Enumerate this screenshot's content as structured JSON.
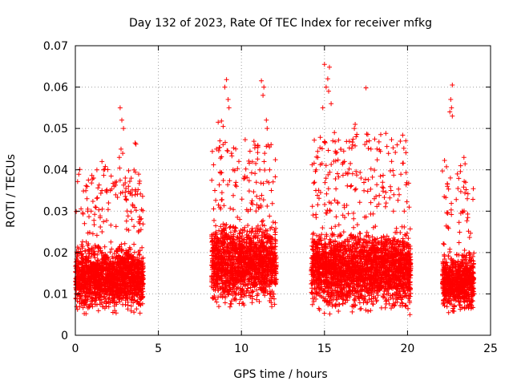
{
  "chart_data": {
    "type": "scatter",
    "title": "Day 132 of 2023, Rate Of TEC Index for receiver mfkg",
    "xlabel": "GPS time / hours",
    "ylabel": "ROTI / TECUs",
    "xlim": [
      0,
      25
    ],
    "ylim": [
      0,
      0.07
    ],
    "xticks": [
      0,
      5,
      10,
      15,
      20,
      25
    ],
    "yticks": [
      0,
      0.01,
      0.02,
      0.03,
      0.04,
      0.05,
      0.06,
      0.07
    ],
    "xtick_labels": [
      "0",
      "5",
      "10",
      "15",
      "20",
      "25"
    ],
    "ytick_labels": [
      "0",
      "0.01",
      "0.02",
      "0.03",
      "0.04",
      "0.05",
      "0.06",
      "0.07"
    ],
    "grid": true,
    "marker": "+",
    "color": "#ff0000",
    "series": [
      {
        "name": "ROTI",
        "clusters": [
          {
            "x_range": [
              0.0,
              4.1
            ],
            "typical_range": [
              0.004,
              0.024
            ],
            "max": 0.055
          },
          {
            "x_range": [
              8.2,
              12.1
            ],
            "typical_range": [
              0.005,
              0.03
            ],
            "max": 0.062
          },
          {
            "x_range": [
              14.2,
              20.2
            ],
            "typical_range": [
              0.004,
              0.028
            ],
            "max": 0.066
          },
          {
            "x_range": [
              22.1,
              24.0
            ],
            "typical_range": [
              0.004,
              0.022
            ],
            "max": 0.061
          }
        ],
        "points": [
          [
            2.7,
            0.055
          ],
          [
            2.8,
            0.052
          ],
          [
            2.9,
            0.05
          ],
          [
            2.75,
            0.045
          ],
          [
            2.85,
            0.044
          ],
          [
            2.65,
            0.043
          ],
          [
            3.6,
            0.0465
          ],
          [
            3.65,
            0.0462
          ],
          [
            1.6,
            0.042
          ],
          [
            1.7,
            0.04
          ],
          [
            1.3,
            0.04
          ],
          [
            1.1,
            0.038
          ],
          [
            0.7,
            0.033
          ],
          [
            0.75,
            0.03
          ],
          [
            0.55,
            0.027
          ],
          [
            0.95,
            0.03
          ],
          [
            1.2,
            0.031
          ],
          [
            1.6,
            0.035
          ],
          [
            2.0,
            0.032
          ],
          [
            2.1,
            0.035
          ],
          [
            2.4,
            0.037
          ],
          [
            3.2,
            0.036
          ],
          [
            3.6,
            0.034
          ],
          [
            3.4,
            0.028
          ],
          [
            3.9,
            0.028
          ],
          [
            3.8,
            0.025
          ],
          [
            8.8,
            0.0518
          ],
          [
            8.6,
            0.0515
          ],
          [
            8.9,
            0.0505
          ],
          [
            9.0,
            0.06
          ],
          [
            9.1,
            0.0618
          ],
          [
            9.2,
            0.057
          ],
          [
            9.25,
            0.055
          ],
          [
            8.5,
            0.045
          ],
          [
            8.7,
            0.047
          ],
          [
            9.4,
            0.044
          ],
          [
            9.5,
            0.04
          ],
          [
            9.7,
            0.036
          ],
          [
            10.2,
            0.038
          ],
          [
            10.6,
            0.032
          ],
          [
            10.9,
            0.037
          ],
          [
            11.2,
            0.0615
          ],
          [
            11.35,
            0.06
          ],
          [
            11.3,
            0.058
          ],
          [
            11.5,
            0.052
          ],
          [
            11.55,
            0.05
          ],
          [
            11.6,
            0.046
          ],
          [
            11.4,
            0.044
          ],
          [
            11.7,
            0.04
          ],
          [
            11.8,
            0.035
          ],
          [
            11.1,
            0.033
          ],
          [
            10.4,
            0.03
          ],
          [
            8.4,
            0.035
          ],
          [
            9.9,
            0.028
          ],
          [
            15.0,
            0.0655
          ],
          [
            15.3,
            0.0648
          ],
          [
            15.2,
            0.062
          ],
          [
            15.1,
            0.06
          ],
          [
            15.25,
            0.059
          ],
          [
            14.9,
            0.055
          ],
          [
            15.4,
            0.056
          ],
          [
            17.5,
            0.0598
          ],
          [
            16.8,
            0.05
          ],
          [
            16.85,
            0.051
          ],
          [
            16.9,
            0.048
          ],
          [
            16.7,
            0.046
          ],
          [
            17.7,
            0.047
          ],
          [
            17.8,
            0.045
          ],
          [
            19.9,
            0.047
          ],
          [
            15.6,
            0.049
          ],
          [
            15.5,
            0.047
          ],
          [
            14.6,
            0.043
          ],
          [
            14.5,
            0.04
          ],
          [
            14.4,
            0.037
          ],
          [
            16.2,
            0.042
          ],
          [
            16.4,
            0.039
          ],
          [
            18.5,
            0.037
          ],
          [
            19.0,
            0.035
          ],
          [
            19.5,
            0.034
          ],
          [
            18.0,
            0.033
          ],
          [
            17.2,
            0.038
          ],
          [
            19.8,
            0.03
          ],
          [
            22.7,
            0.0605
          ],
          [
            22.6,
            0.057
          ],
          [
            22.65,
            0.055
          ],
          [
            22.55,
            0.054
          ],
          [
            22.7,
            0.053
          ],
          [
            23.4,
            0.043
          ],
          [
            23.2,
            0.041
          ],
          [
            23.0,
            0.039
          ],
          [
            22.4,
            0.036
          ],
          [
            23.5,
            0.037
          ],
          [
            23.6,
            0.033
          ],
          [
            23.3,
            0.03
          ],
          [
            23.7,
            0.02
          ],
          [
            22.2,
            0.022
          ]
        ]
      }
    ]
  }
}
